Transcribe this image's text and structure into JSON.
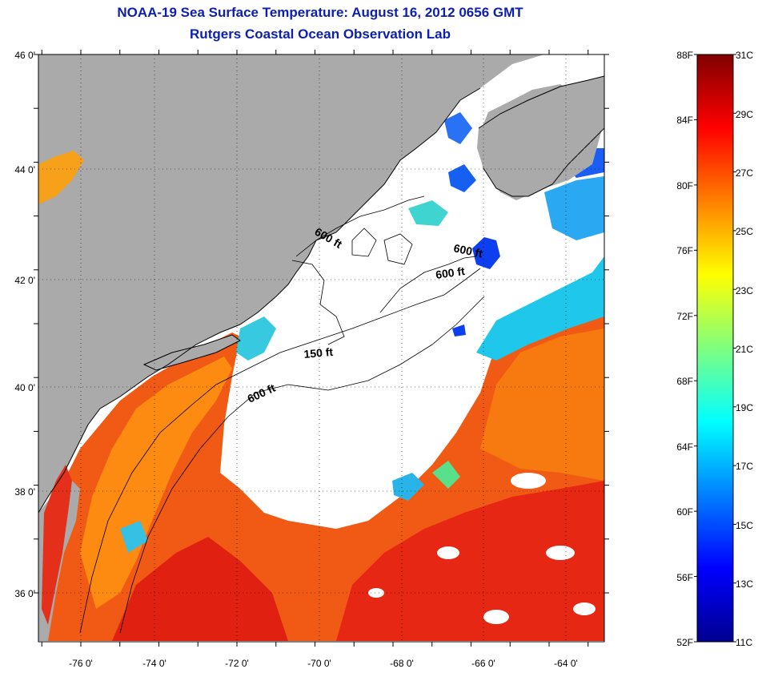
{
  "title": "NOAA-19 Sea Surface Temperature:  August 16, 2012 0656 GMT",
  "subtitle": "Rutgers Coastal Ocean Observation Lab",
  "map": {
    "lon_ticks": [
      "-76 0'",
      "-74 0'",
      "-72 0'",
      "-70 0'",
      "-68 0'",
      "-66 0'",
      "-64 0'"
    ],
    "lat_ticks": [
      "46 0'",
      "44 0'",
      "42 0'",
      "40 0'",
      "38 0'",
      "36 0'"
    ],
    "contour_labels": [
      "600 ft",
      "600 ft",
      "600 ft",
      "150 ft",
      "600 ft"
    ],
    "colors": {
      "land": "#aaaaaa",
      "cloud": "#ffffff",
      "warm": "#ea2a12",
      "mid": "#ff7f00",
      "cool": "#19c4e6",
      "cold": "#0a2de0"
    }
  },
  "colorbar": {
    "f_labels": [
      "88F",
      "84F",
      "80F",
      "76F",
      "72F",
      "68F",
      "64F",
      "60F",
      "56F",
      "52F"
    ],
    "c_labels": [
      "31C",
      "29C",
      "27C",
      "25C",
      "23C",
      "21C",
      "19C",
      "17C",
      "15C",
      "13C",
      "11C"
    ],
    "range_c": [
      11,
      31
    ],
    "colormap": "jet"
  }
}
